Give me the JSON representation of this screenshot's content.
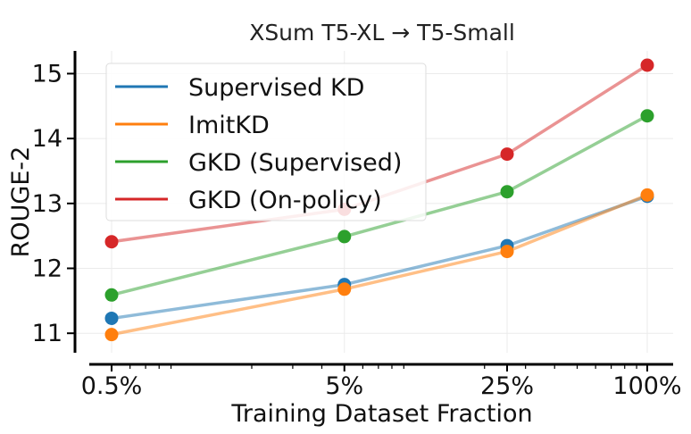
{
  "chart_data": {
    "type": "line",
    "title": "XSum T5-XL → T5-Small",
    "xlabel": "Training Dataset Fraction",
    "ylabel": "ROUGE-2",
    "x_scale": "log",
    "x": [
      0.5,
      5,
      25,
      100
    ],
    "x_tick_labels": [
      "0.5%",
      "5%",
      "25%",
      "100%"
    ],
    "ylim": [
      10.7,
      15.35
    ],
    "y_ticks": [
      11,
      12,
      13,
      14,
      15
    ],
    "grid": true,
    "legend_position": "top-left",
    "series": [
      {
        "name": "Supervised KD",
        "color": "#1f77b4",
        "values": [
          11.23,
          11.75,
          12.35,
          13.11
        ]
      },
      {
        "name": "ImitKD",
        "color": "#ff7f0e",
        "values": [
          10.98,
          11.68,
          12.26,
          13.13
        ]
      },
      {
        "name": "GKD (Supervised)",
        "color": "#2ca02c",
        "values": [
          11.59,
          12.49,
          13.18,
          14.35
        ]
      },
      {
        "name": "GKD (On-policy)",
        "color": "#d62728",
        "values": [
          12.41,
          12.91,
          13.76,
          15.13
        ]
      }
    ]
  }
}
